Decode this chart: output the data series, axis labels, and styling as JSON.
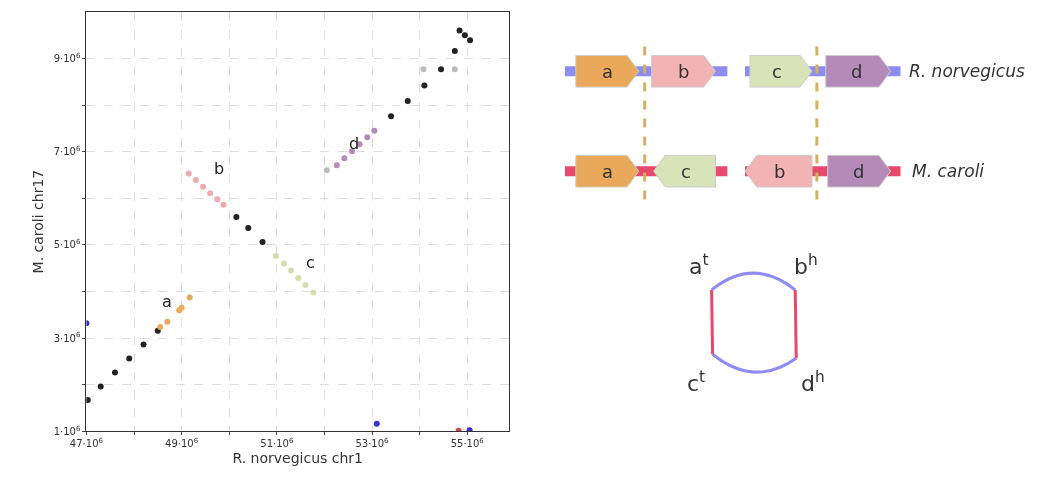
{
  "chart_data": [
    {
      "type": "scatter",
      "xlabel": "R. norvegicus chr1",
      "ylabel": "M. caroli chr17",
      "xlim": [
        47000000,
        55880000
      ],
      "ylim": [
        1000000,
        10000000
      ],
      "xticks": [
        {
          "value": 47000000,
          "label": "47·10$^{6}$"
        },
        {
          "value": 48000000,
          "label": null
        },
        {
          "value": 49000000,
          "label": "49·10$^{6}$"
        },
        {
          "value": 50000000,
          "label": null
        },
        {
          "value": 51000000,
          "label": "51·10$^{6}$"
        },
        {
          "value": 52000000,
          "label": null
        },
        {
          "value": 53000000,
          "label": "53·10$^{6}$"
        },
        {
          "value": 54000000,
          "label": null
        },
        {
          "value": 55000000,
          "label": "55·10$^{6}$"
        }
      ],
      "yticks": [
        {
          "value": 1000000,
          "label": "1·10$^{6}$"
        },
        {
          "value": 2000000,
          "label": null
        },
        {
          "value": 3000000,
          "label": "3·10$^{6}$"
        },
        {
          "value": 4000000,
          "label": null
        },
        {
          "value": 5000000,
          "label": "5·10$^{6}$"
        },
        {
          "value": 6000000,
          "label": null
        },
        {
          "value": 7000000,
          "label": "7·10$^{6}$"
        },
        {
          "value": 8000000,
          "label": null
        },
        {
          "value": 9000000,
          "label": "9·10$^{6}$"
        }
      ],
      "grid": true,
      "marker": "circle",
      "series": [
        {
          "color": "#222222",
          "x": [
            47030000,
            47300000,
            47600000,
            47900000,
            48200000,
            48500000,
            50150000,
            50400000,
            50700000,
            53400000,
            53750000,
            54100000,
            54450000,
            54740000,
            54840000,
            54950000,
            55060000
          ],
          "values": [
            1670000,
            1960000,
            2260000,
            2560000,
            2860000,
            3160000,
            5600000,
            5360000,
            5060000,
            7760000,
            8090000,
            8420000,
            8770000,
            9160000,
            9600000,
            9500000,
            9390000
          ]
        },
        {
          "color": "#eaa95a",
          "x": [
            48550000,
            48700000,
            48950000,
            49000000,
            49170000
          ],
          "values": [
            3240000,
            3350000,
            3600000,
            3650000,
            3870000
          ]
        },
        {
          "color": "#eeaaae",
          "x": [
            49150000,
            49300000,
            49450000,
            49600000,
            49750000,
            49880000
          ],
          "values": [
            6530000,
            6390000,
            6250000,
            6110000,
            5980000,
            5860000
          ]
        },
        {
          "color": "#d2ddb0",
          "x": [
            50980000,
            51150000,
            51300000,
            51450000,
            51600000,
            51770000
          ],
          "values": [
            4760000,
            4600000,
            4450000,
            4290000,
            4140000,
            3980000
          ]
        },
        {
          "color": "#b48bb8",
          "x": [
            52260000,
            52420000,
            52580000,
            52740000,
            52900000,
            53050000
          ],
          "values": [
            6710000,
            6860000,
            7010000,
            7160000,
            7310000,
            7450000
          ]
        },
        {
          "color": "#3333cc",
          "x": [
            47000000,
            53100000,
            55050000
          ],
          "values": [
            3320000,
            1160000,
            1020000
          ]
        },
        {
          "color": "#cc4444",
          "x": [
            54820000
          ],
          "values": [
            1010000
          ]
        },
        {
          "color": "#bbbbbb",
          "x": [
            52050000,
            54080000,
            54740000
          ],
          "values": [
            6600000,
            8770000,
            8770000
          ]
        }
      ],
      "annotations": [
        "a",
        "b",
        "c",
        "d"
      ]
    },
    {
      "type": "other",
      "annotations": [
        "a",
        "b",
        "c",
        "d",
        "R. norvegicus",
        "a",
        "c",
        "b",
        "d",
        "M. caroli",
        "a$^{t}$",
        "b$^{h}$",
        "c$^{t}$",
        "d$^{h}$"
      ]
    }
  ]
}
